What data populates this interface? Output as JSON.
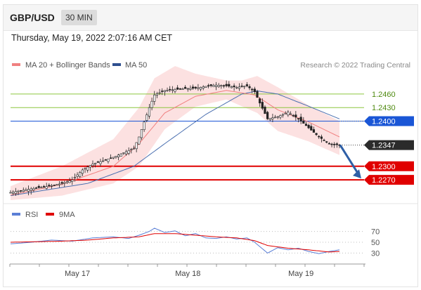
{
  "header": {
    "pair": "GBP/USD",
    "timeframe": "30 MIN"
  },
  "datetime": "Thursday, May 19, 2022 2:07:16 AM CET",
  "legend": {
    "ma20": "MA 20 + Bollinger Bands",
    "ma50": "MA 50",
    "copyright": "Research © 2022 Trading Central",
    "rsi": "RSI",
    "ma9": "9MA"
  },
  "colors": {
    "bollinger_fill": "#fcdede",
    "ma20": "#f08080",
    "ma50": "#4a6fb0",
    "candle": "#222222",
    "level_green": "#8dc63f",
    "level_green_text": "#4f8a10",
    "level_blue": "#1a56d6",
    "level_red": "#e00000",
    "current_price": "#2b2b2b",
    "arrow": "#2e5fa6",
    "rsi": "#5b7fd6",
    "ma9": "#e00000"
  },
  "chart_data": [
    {
      "type": "candlestick",
      "x_ticks": [
        "May 17",
        "May 18",
        "May 19"
      ],
      "ylim": [
        1.2225,
        1.2505
      ],
      "current_price": "1.2347",
      "levels": [
        {
          "label": "1.2460",
          "value": 1.246,
          "kind": "resistance-green"
        },
        {
          "label": "1.2430",
          "value": 1.243,
          "kind": "resistance-green"
        },
        {
          "label": "1.2400",
          "value": 1.24,
          "kind": "pivot-blue"
        },
        {
          "label": "1.2300",
          "value": 1.23,
          "kind": "support-red"
        },
        {
          "label": "1.2270",
          "value": 1.227,
          "kind": "support-red"
        }
      ],
      "close_path": [
        [
          0,
          1.2242
        ],
        [
          8,
          1.225
        ],
        [
          15,
          1.2256
        ],
        [
          20,
          1.2262
        ],
        [
          24,
          1.227
        ],
        [
          28,
          1.2292
        ],
        [
          32,
          1.2305
        ],
        [
          36,
          1.2312
        ],
        [
          40,
          1.232
        ],
        [
          44,
          1.233
        ],
        [
          48,
          1.234
        ],
        [
          50,
          1.2365
        ],
        [
          52,
          1.2398
        ],
        [
          54,
          1.243
        ],
        [
          56,
          1.2458
        ],
        [
          60,
          1.2468
        ],
        [
          64,
          1.247
        ],
        [
          68,
          1.2472
        ],
        [
          72,
          1.2473
        ],
        [
          76,
          1.2477
        ],
        [
          80,
          1.248
        ],
        [
          84,
          1.2478
        ],
        [
          88,
          1.2475
        ],
        [
          92,
          1.2478
        ],
        [
          95,
          1.2465
        ],
        [
          97,
          1.244
        ],
        [
          100,
          1.2405
        ],
        [
          104,
          1.241
        ],
        [
          108,
          1.242
        ],
        [
          112,
          1.2405
        ],
        [
          116,
          1.2385
        ],
        [
          120,
          1.2365
        ],
        [
          124,
          1.235
        ],
        [
          128,
          1.2347
        ]
      ],
      "ma20_path": [
        [
          0,
          1.2236
        ],
        [
          20,
          1.226
        ],
        [
          40,
          1.23
        ],
        [
          50,
          1.235
        ],
        [
          60,
          1.2418
        ],
        [
          72,
          1.2455
        ],
        [
          84,
          1.2468
        ],
        [
          95,
          1.2458
        ],
        [
          104,
          1.2425
        ],
        [
          116,
          1.2398
        ],
        [
          128,
          1.2365
        ]
      ],
      "ma50_path": [
        [
          0,
          1.2235
        ],
        [
          30,
          1.2262
        ],
        [
          48,
          1.23
        ],
        [
          60,
          1.235
        ],
        [
          76,
          1.2415
        ],
        [
          90,
          1.246
        ],
        [
          96,
          1.2467
        ],
        [
          104,
          1.246
        ],
        [
          116,
          1.2433
        ],
        [
          128,
          1.2405
        ]
      ],
      "bollinger_upper": [
        [
          0,
          1.2256
        ],
        [
          20,
          1.23
        ],
        [
          40,
          1.236
        ],
        [
          50,
          1.243
        ],
        [
          56,
          1.2495
        ],
        [
          64,
          1.2522
        ],
        [
          72,
          1.2505
        ],
        [
          84,
          1.249
        ],
        [
          90,
          1.249
        ],
        [
          96,
          1.25
        ],
        [
          104,
          1.2475
        ],
        [
          116,
          1.2435
        ],
        [
          128,
          1.24
        ]
      ],
      "bollinger_lower": [
        [
          0,
          1.2225
        ],
        [
          20,
          1.2235
        ],
        [
          40,
          1.2262
        ],
        [
          50,
          1.23
        ],
        [
          60,
          1.2382
        ],
        [
          72,
          1.2432
        ],
        [
          84,
          1.2448
        ],
        [
          96,
          1.2418
        ],
        [
          104,
          1.2378
        ],
        [
          116,
          1.2355
        ],
        [
          128,
          1.2325
        ]
      ],
      "forecast": {
        "from": 1.2347,
        "to": 1.227
      }
    },
    {
      "type": "line",
      "name_rsi": "RSI",
      "name_ma": "9MA",
      "ylim": [
        15,
        85
      ],
      "levels": [
        "70",
        "50",
        "30"
      ],
      "rsi_path": [
        [
          0,
          47
        ],
        [
          8,
          50
        ],
        [
          16,
          54
        ],
        [
          24,
          52
        ],
        [
          32,
          58
        ],
        [
          40,
          60
        ],
        [
          46,
          57
        ],
        [
          50,
          63
        ],
        [
          54,
          70
        ],
        [
          56,
          76
        ],
        [
          60,
          68
        ],
        [
          64,
          71
        ],
        [
          68,
          62
        ],
        [
          72,
          66
        ],
        [
          76,
          58
        ],
        [
          80,
          57
        ],
        [
          84,
          60
        ],
        [
          88,
          56
        ],
        [
          92,
          58
        ],
        [
          95,
          50
        ],
        [
          98,
          38
        ],
        [
          100,
          30
        ],
        [
          104,
          40
        ],
        [
          108,
          36
        ],
        [
          112,
          39
        ],
        [
          116,
          33
        ],
        [
          120,
          29
        ],
        [
          124,
          33
        ],
        [
          128,
          36
        ]
      ],
      "ma9_path": [
        [
          0,
          50
        ],
        [
          10,
          51
        ],
        [
          20,
          52
        ],
        [
          30,
          54
        ],
        [
          40,
          58
        ],
        [
          50,
          60
        ],
        [
          56,
          66
        ],
        [
          64,
          66
        ],
        [
          72,
          63
        ],
        [
          80,
          60
        ],
        [
          88,
          58
        ],
        [
          95,
          53
        ],
        [
          100,
          44
        ],
        [
          108,
          39
        ],
        [
          116,
          36
        ],
        [
          124,
          32
        ],
        [
          128,
          33
        ]
      ]
    }
  ]
}
